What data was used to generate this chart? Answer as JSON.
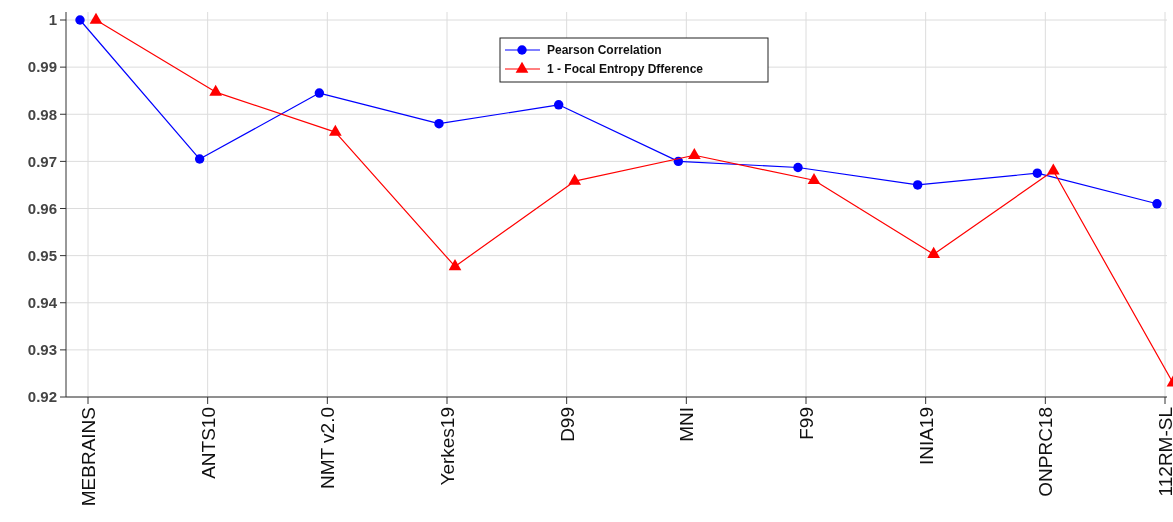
{
  "chart_data": {
    "type": "line",
    "categories": [
      "MEBRAINS",
      "ANTS10",
      "NMT v2.0",
      "Yerkes19",
      "D99",
      "MNI",
      "F99",
      "INIA19",
      "ONPRC18",
      "112RM-SL"
    ],
    "series": [
      {
        "name": "Pearson Correlation",
        "color": "#0000ff",
        "marker": "circle",
        "values": [
          1,
          0.9705,
          0.9845,
          0.978,
          0.982,
          0.97,
          0.9687,
          0.965,
          0.9675,
          0.961
        ]
      },
      {
        "name": "1 - Focal Entropy Dfference",
        "color": "#ff0000",
        "marker": "triangle",
        "values": [
          1,
          0.9847,
          0.9762,
          0.9477,
          0.9658,
          0.9713,
          0.966,
          0.9503,
          0.968,
          0.923
        ]
      }
    ],
    "ylim": [
      0.92,
      1
    ],
    "yticks": [
      0.92,
      0.93,
      0.94,
      0.95,
      0.96,
      0.97,
      0.98,
      0.99,
      1
    ],
    "grid": true,
    "legend": "top",
    "line_style": "solid"
  }
}
